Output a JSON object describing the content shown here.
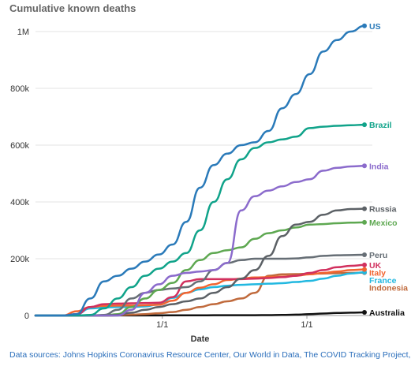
{
  "chart_data": {
    "type": "line",
    "title": "Cumulative known deaths",
    "xlabel": "Date",
    "ylabel": "",
    "ylim": [
      0,
      1050000
    ],
    "y_ticks": [
      0,
      200000,
      400000,
      600000,
      800000,
      1000000
    ],
    "y_tick_labels": [
      "0",
      "200k",
      "400k",
      "600k",
      "800k",
      "1M"
    ],
    "x_tick_labels": [
      "1/1",
      "1/1"
    ],
    "grid": true,
    "legend": "direct labels at line ends",
    "series": [
      {
        "name": "US",
        "color": "#2a7ab9",
        "values": [
          0,
          0,
          0,
          5000,
          60000,
          120000,
          140000,
          165000,
          190000,
          215000,
          250000,
          330000,
          450000,
          530000,
          570000,
          600000,
          610000,
          650000,
          730000,
          780000,
          850000,
          930000,
          970000,
          1000000,
          1020000
        ]
      },
      {
        "name": "Brazil",
        "color": "#10a38a",
        "values": [
          0,
          0,
          0,
          0,
          2000,
          25000,
          60000,
          100000,
          140000,
          165000,
          190000,
          220000,
          300000,
          400000,
          480000,
          550000,
          590000,
          610000,
          620000,
          630000,
          660000,
          665000,
          668000,
          670000,
          672000
        ]
      },
      {
        "name": "India",
        "color": "#8b6bcc",
        "values": [
          0,
          0,
          0,
          0,
          0,
          0,
          0,
          20000,
          80000,
          110000,
          140000,
          150000,
          155000,
          160000,
          185000,
          370000,
          420000,
          440000,
          455000,
          470000,
          480000,
          510000,
          520000,
          525000,
          527000
        ]
      },
      {
        "name": "Russia",
        "color": "#5c6166",
        "values": [
          0,
          0,
          0,
          0,
          0,
          0,
          2000,
          10000,
          20000,
          30000,
          40000,
          50000,
          60000,
          80000,
          100000,
          130000,
          160000,
          210000,
          280000,
          320000,
          330000,
          355000,
          370000,
          375000,
          376000
        ]
      },
      {
        "name": "Mexico",
        "color": "#5ea851",
        "values": [
          0,
          0,
          0,
          0,
          0,
          0,
          5000,
          30000,
          60000,
          90000,
          115000,
          160000,
          195000,
          220000,
          230000,
          240000,
          270000,
          290000,
          300000,
          310000,
          320000,
          322000,
          325000,
          327000,
          328000
        ]
      },
      {
        "name": "Peru",
        "color": "#666e75",
        "values": [
          0,
          0,
          0,
          0,
          0,
          2000,
          20000,
          60000,
          80000,
          90000,
          95000,
          100000,
          120000,
          160000,
          185000,
          195000,
          200000,
          200000,
          200000,
          201000,
          205000,
          210000,
          212000,
          213000,
          214000
        ]
      },
      {
        "name": "UK",
        "color": "#d1305e",
        "values": [
          0,
          0,
          0,
          5000,
          30000,
          40000,
          42000,
          43000,
          44000,
          45000,
          65000,
          120000,
          128000,
          128000,
          128000,
          128000,
          130000,
          132000,
          135000,
          140000,
          150000,
          160000,
          170000,
          175000,
          178000
        ]
      },
      {
        "name": "Italy",
        "color": "#f26430",
        "values": [
          0,
          0,
          0,
          15000,
          30000,
          34000,
          35000,
          35000,
          36000,
          38000,
          52000,
          80000,
          98000,
          110000,
          125000,
          130000,
          134000,
          135000,
          137000,
          140000,
          145000,
          150000,
          155000,
          160000,
          162000
        ]
      },
      {
        "name": "France",
        "color": "#22b8e0",
        "values": [
          0,
          0,
          0,
          5000,
          25000,
          28000,
          30000,
          30000,
          32000,
          40000,
          62000,
          80000,
          92000,
          100000,
          105000,
          108000,
          110000,
          112000,
          114000,
          118000,
          122000,
          130000,
          140000,
          148000,
          152000
        ]
      },
      {
        "name": "Indonesia",
        "color": "#c06a3c",
        "values": [
          0,
          0,
          0,
          0,
          0,
          0,
          1000,
          3000,
          5000,
          8000,
          12000,
          20000,
          30000,
          40000,
          50000,
          60000,
          80000,
          140000,
          145000,
          146000,
          147000,
          148000,
          149000,
          150000,
          151000
        ]
      },
      {
        "name": "Australia",
        "color": "#111111",
        "values": [
          0,
          0,
          0,
          0,
          0,
          100,
          200,
          300,
          400,
          500,
          600,
          700,
          800,
          900,
          1000,
          1000,
          1200,
          1500,
          2000,
          3000,
          5000,
          7000,
          9000,
          10000,
          11000
        ]
      }
    ]
  },
  "source_note": "Data sources: Johns Hopkins Coronavirus Resource Center, Our World in Data, The COVID Tracking Project, ABC"
}
